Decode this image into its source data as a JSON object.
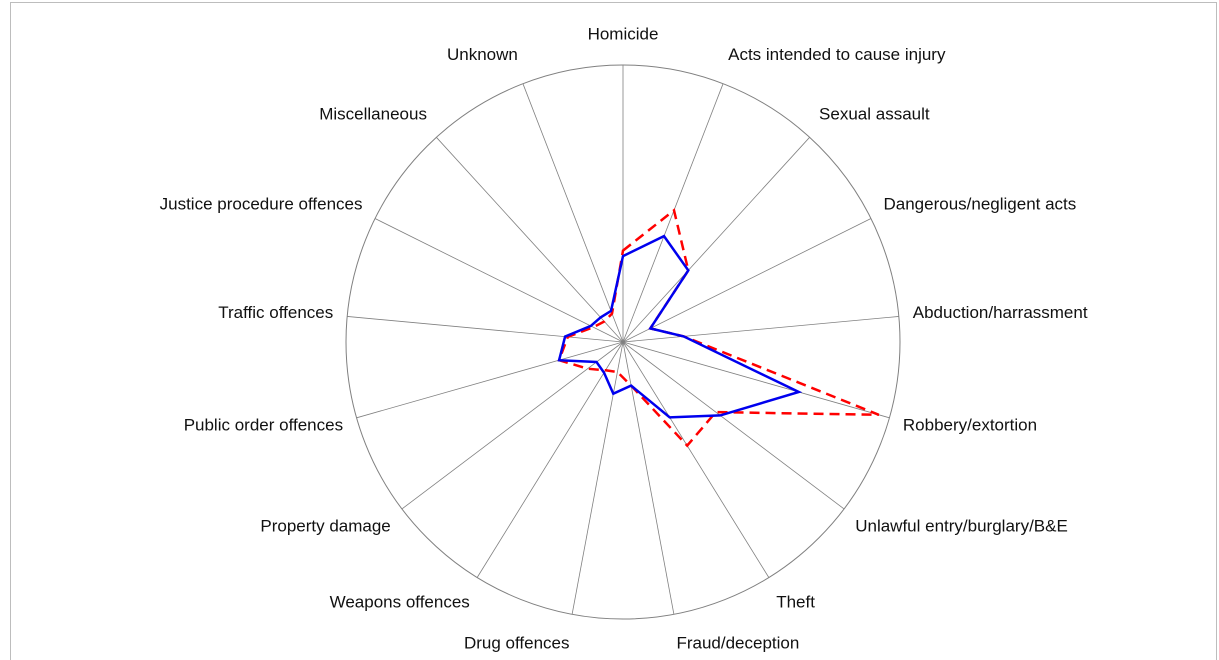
{
  "chart_data": {
    "type": "radar",
    "categories": [
      "Homicide",
      "Acts intended to cause injury",
      "Sexual assault",
      "Dangerous/negligent acts",
      "Abduction/harrassment",
      "Robbery/extortion",
      "Unlawful entry/burglary/B&E",
      "Theft",
      "Fraud/deception",
      "Drug offences",
      "Weapons offences",
      "Property damage",
      "Public order offences",
      "Traffic offences",
      "Justice procedure offences",
      "Miscellaneous",
      "Unknown"
    ],
    "rlim": [
      0,
      1
    ],
    "series": [
      {
        "color": "#ff0000",
        "dash": true,
        "values": [
          0.33,
          0.51,
          0.35,
          0.11,
          0.22,
          0.96,
          0.42,
          0.44,
          0.16,
          0.11,
          0.12,
          0.16,
          0.24,
          0.2,
          0.12,
          0.1,
          0.11
        ]
      },
      {
        "color": "#0000ee",
        "dash": false,
        "values": [
          0.31,
          0.41,
          0.35,
          0.11,
          0.22,
          0.66,
          0.44,
          0.32,
          0.16,
          0.19,
          0.13,
          0.12,
          0.24,
          0.21,
          0.13,
          0.12,
          0.12
        ]
      }
    ]
  }
}
